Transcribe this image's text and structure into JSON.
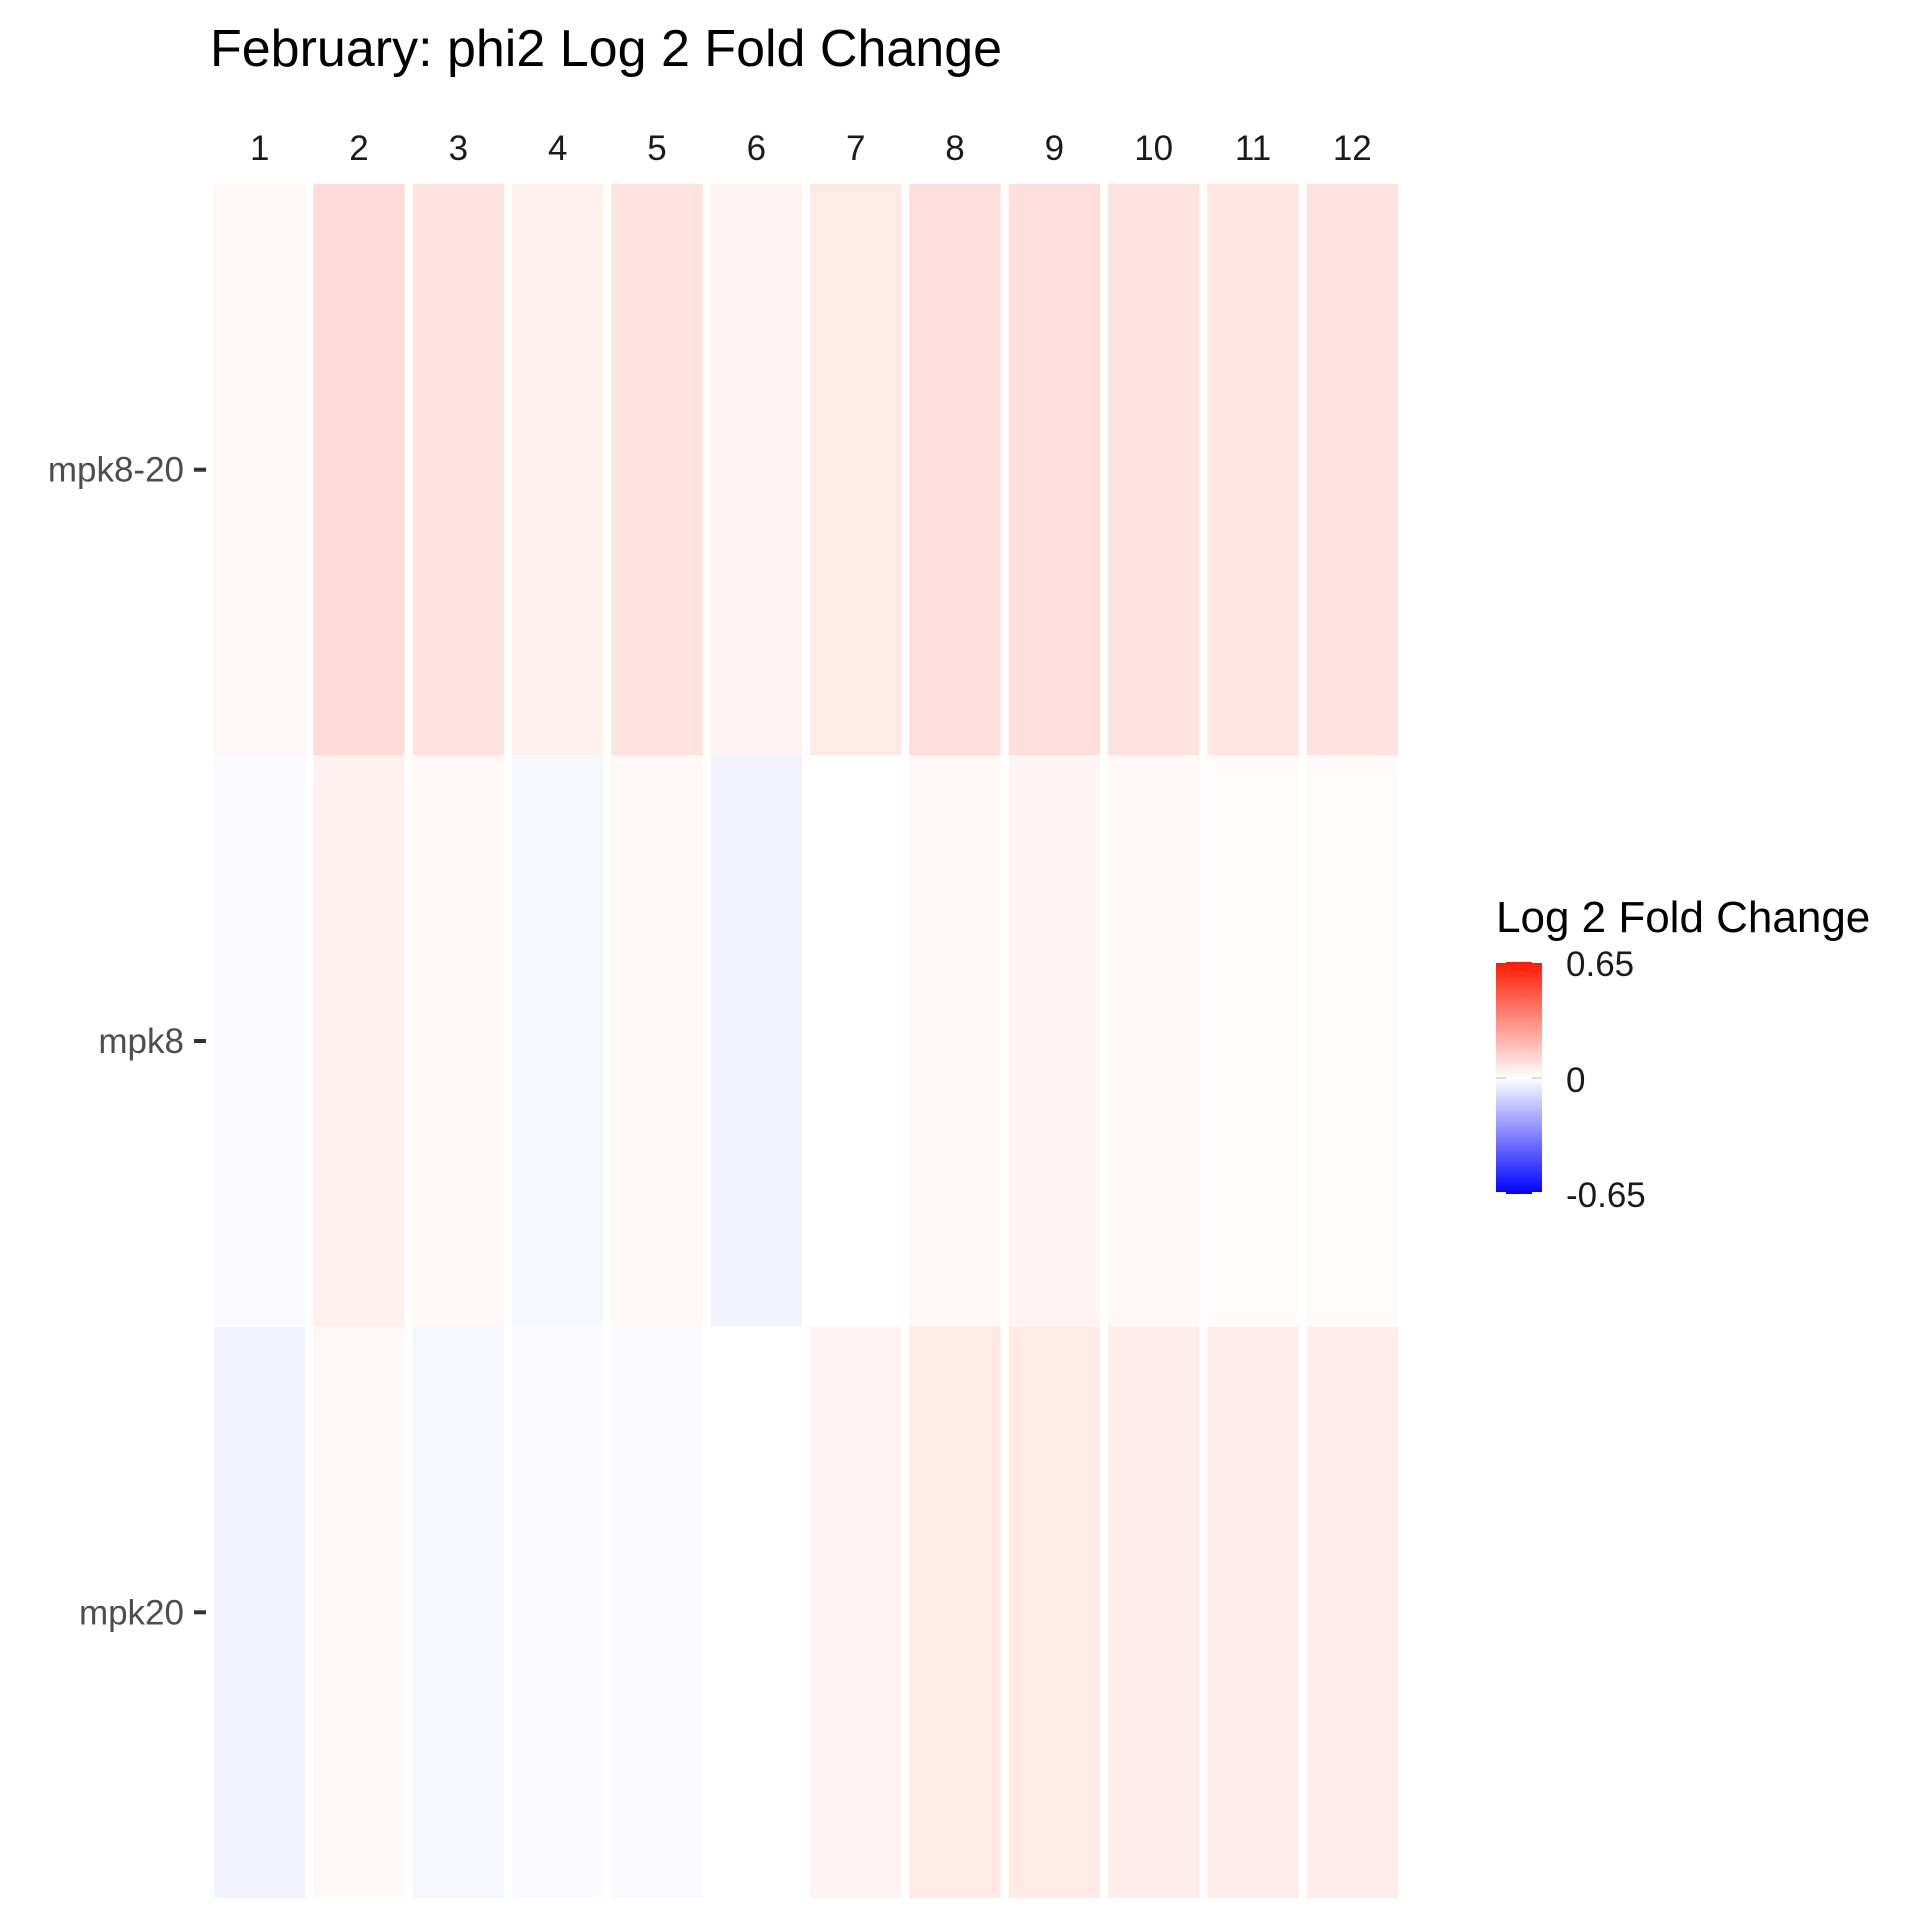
{
  "chart_data": {
    "type": "heatmap",
    "title": "February: phi2 Log 2 Fold Change",
    "columns": [
      "1",
      "2",
      "3",
      "4",
      "5",
      "6",
      "7",
      "8",
      "9",
      "10",
      "11",
      "12"
    ],
    "rows": [
      "mpk8-20",
      "mpk8",
      "mpk20"
    ],
    "values": [
      [
        0.02,
        0.1,
        0.08,
        0.04,
        0.08,
        0.03,
        0.06,
        0.09,
        0.09,
        0.08,
        0.07,
        0.08
      ],
      [
        -0.01,
        0.04,
        0.02,
        -0.02,
        0.02,
        -0.03,
        0.0,
        0.02,
        0.03,
        0.02,
        0.01,
        0.01
      ],
      [
        -0.03,
        0.02,
        -0.02,
        -0.01,
        -0.01,
        0.0,
        0.03,
        0.06,
        0.06,
        0.05,
        0.05,
        0.05
      ]
    ],
    "legend": {
      "title": "Log 2 Fold Change",
      "max": 0.65,
      "mid": 0,
      "min": -0.65,
      "max_label": "0.65",
      "mid_label": "0",
      "min_label": "-0.65",
      "placement": "right"
    },
    "colors": {
      "high": "#ff1a00",
      "mid": "#ffffff",
      "low": "#0000ff"
    },
    "grid": false
  }
}
